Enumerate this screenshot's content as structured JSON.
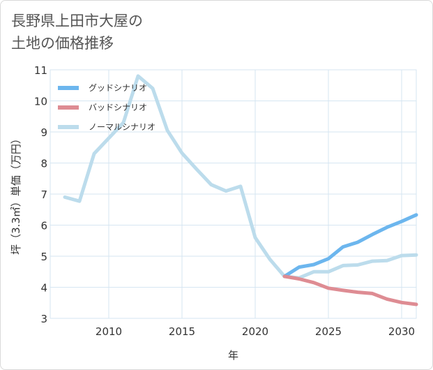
{
  "title_lines": [
    "長野県上田市大屋の",
    "土地の価格推移"
  ],
  "chart_data": {
    "type": "line",
    "title": "長野県上田市大屋の土地の価格推移",
    "xlabel": "年",
    "ylabel": "坪（3.3㎡）単価（万円）",
    "xlim": [
      2006,
      2031
    ],
    "ylim": [
      3,
      11
    ],
    "xticks": [
      2010,
      2015,
      2020,
      2025,
      2030
    ],
    "yticks": [
      3,
      4,
      5,
      6,
      7,
      8,
      9,
      10,
      11
    ],
    "grid": true,
    "legend_position": "top-left",
    "series": [
      {
        "name": "グッドシナリオ",
        "color": "#6cb6ee",
        "x": [
          2022,
          2023,
          2024,
          2025,
          2026,
          2027,
          2028,
          2029,
          2030,
          2031
        ],
        "y": [
          4.35,
          4.65,
          4.73,
          4.92,
          5.3,
          5.45,
          5.7,
          5.93,
          6.12,
          6.33
        ]
      },
      {
        "name": "バッドシナリオ",
        "color": "#de8c93",
        "x": [
          2022,
          2023,
          2024,
          2025,
          2026,
          2027,
          2028,
          2029,
          2030,
          2031
        ],
        "y": [
          4.35,
          4.27,
          4.15,
          3.97,
          3.9,
          3.84,
          3.8,
          3.62,
          3.51,
          3.45
        ]
      },
      {
        "name": "ノーマルシナリオ",
        "color": "#bcdcec",
        "x": [
          2007,
          2008,
          2009,
          2010,
          2011,
          2012,
          2013,
          2014,
          2015,
          2016,
          2017,
          2018,
          2019,
          2020,
          2021,
          2022,
          2023,
          2024,
          2025,
          2026,
          2027,
          2028,
          2029,
          2030,
          2031
        ],
        "y": [
          6.9,
          6.77,
          8.3,
          8.8,
          9.3,
          10.8,
          10.4,
          9.05,
          8.32,
          7.8,
          7.3,
          7.1,
          7.25,
          5.6,
          4.9,
          4.35,
          4.3,
          4.5,
          4.5,
          4.7,
          4.72,
          4.84,
          4.86,
          5.02,
          5.04
        ]
      }
    ]
  }
}
